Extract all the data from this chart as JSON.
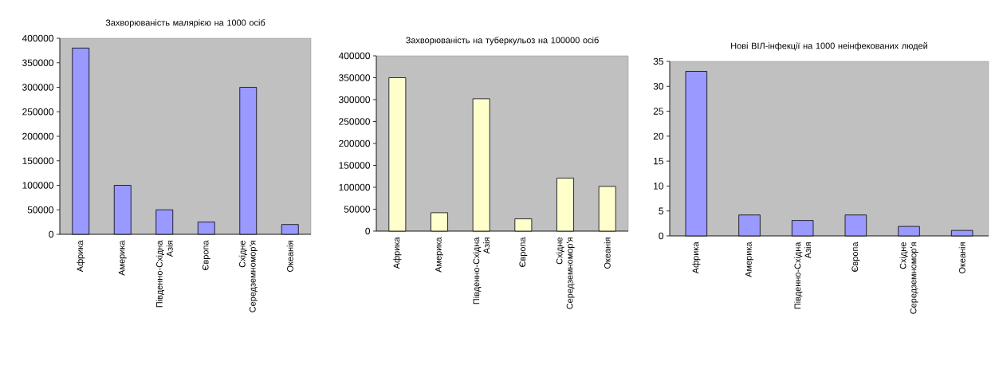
{
  "chart_data": [
    {
      "type": "bar",
      "title": "Захворюваність малярією на 1000 осіб",
      "categories": [
        "Африка",
        "Америка",
        "Південно-Східна Азія",
        "Європа",
        "Східне Середземномор'я",
        "Океанія"
      ],
      "values": [
        380000,
        100000,
        50000,
        25000,
        300000,
        20000
      ],
      "color": "#9999ff",
      "ylim": [
        0,
        400000
      ],
      "yticks": [
        0,
        50000,
        100000,
        150000,
        200000,
        250000,
        300000,
        350000,
        400000
      ]
    },
    {
      "type": "bar",
      "title": "Захворюваність на туберкульоз на 100000 осіб",
      "categories": [
        "Африка",
        "Америка",
        "Південно-Східна Азія",
        "Європа",
        "Східне Середземномор'я",
        "Океанія"
      ],
      "values": [
        350000,
        42000,
        302000,
        28000,
        121000,
        102000
      ],
      "color": "#ffffcc",
      "ylim": [
        0,
        400000
      ],
      "yticks": [
        0,
        50000,
        100000,
        150000,
        200000,
        250000,
        300000,
        350000,
        400000
      ]
    },
    {
      "type": "bar",
      "title": "Нові ВІЛ-інфекції на 1000 неінфекованих людей",
      "categories": [
        "Африка",
        "Америка",
        "Південно-Східна Азія",
        "Європа",
        "Східне Середземномор'я",
        "Океанія"
      ],
      "values": [
        33,
        4.2,
        3.1,
        4.2,
        1.9,
        1.1
      ],
      "color": "#9999ff",
      "ylim": [
        0,
        35
      ],
      "yticks": [
        0,
        5,
        10,
        15,
        20,
        25,
        30,
        35
      ]
    }
  ]
}
